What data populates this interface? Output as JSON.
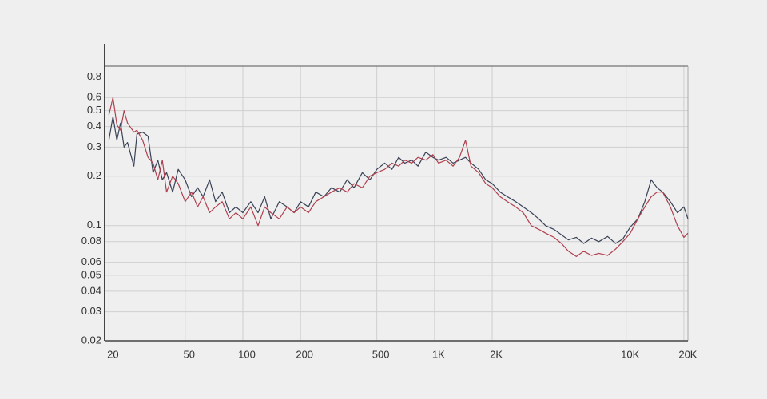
{
  "chart_data": {
    "type": "line",
    "xscale": "log",
    "yscale": "log",
    "grid": true,
    "xlim": [
      19,
      21000
    ],
    "ylim": [
      0.02,
      0.93
    ],
    "xticks": [
      20,
      50,
      100,
      200,
      500,
      {
        "value": 1000,
        "label": "1K"
      },
      {
        "value": 2000,
        "label": "2K"
      },
      {
        "value": 10000,
        "label": "10K"
      },
      {
        "value": 20000,
        "label": "20K"
      }
    ],
    "yticks": [
      0.02,
      0.03,
      0.04,
      0.05,
      0.06,
      0.08,
      0.1,
      0.2,
      0.3,
      0.4,
      0.5,
      0.6,
      0.8
    ],
    "x": [
      20,
      21,
      22,
      23,
      24,
      25,
      27,
      28,
      30,
      32,
      34,
      36,
      38,
      40,
      43,
      46,
      50,
      54,
      58,
      62,
      67,
      72,
      78,
      85,
      92,
      100,
      110,
      120,
      130,
      140,
      155,
      170,
      185,
      200,
      220,
      240,
      265,
      290,
      320,
      350,
      380,
      420,
      460,
      500,
      550,
      600,
      650,
      700,
      760,
      820,
      900,
      980,
      1050,
      1150,
      1250,
      1350,
      1450,
      1550,
      1700,
      1850,
      2000,
      2200,
      2400,
      2650,
      2900,
      3200,
      3500,
      3800,
      4200,
      4600,
      5000,
      5500,
      6000,
      6600,
      7200,
      8000,
      8800,
      9600,
      10500,
      11500,
      12500,
      13500,
      14500,
      15500,
      17000,
      18500,
      20000,
      21000
    ],
    "series": [
      {
        "color": "#3a4257",
        "values": [
          0.33,
          0.46,
          0.33,
          0.42,
          0.3,
          0.32,
          0.23,
          0.36,
          0.37,
          0.35,
          0.21,
          0.25,
          0.19,
          0.21,
          0.16,
          0.22,
          0.19,
          0.15,
          0.17,
          0.15,
          0.19,
          0.14,
          0.16,
          0.12,
          0.13,
          0.12,
          0.14,
          0.12,
          0.15,
          0.11,
          0.14,
          0.13,
          0.12,
          0.14,
          0.13,
          0.16,
          0.15,
          0.17,
          0.16,
          0.19,
          0.17,
          0.21,
          0.19,
          0.22,
          0.24,
          0.22,
          0.26,
          0.24,
          0.25,
          0.23,
          0.28,
          0.26,
          0.25,
          0.26,
          0.24,
          0.25,
          0.26,
          0.24,
          0.22,
          0.19,
          0.18,
          0.16,
          0.15,
          0.14,
          0.13,
          0.12,
          0.11,
          0.1,
          0.095,
          0.088,
          0.082,
          0.085,
          0.078,
          0.084,
          0.08,
          0.086,
          0.078,
          0.083,
          0.098,
          0.11,
          0.14,
          0.19,
          0.17,
          0.16,
          0.14,
          0.12,
          0.13,
          0.11
        ]
      },
      {
        "color": "#b0404f",
        "values": [
          0.47,
          0.6,
          0.41,
          0.38,
          0.5,
          0.42,
          0.37,
          0.38,
          0.33,
          0.26,
          0.24,
          0.19,
          0.25,
          0.16,
          0.2,
          0.18,
          0.14,
          0.16,
          0.13,
          0.15,
          0.12,
          0.13,
          0.14,
          0.11,
          0.12,
          0.11,
          0.13,
          0.1,
          0.13,
          0.12,
          0.11,
          0.13,
          0.12,
          0.13,
          0.12,
          0.14,
          0.15,
          0.16,
          0.17,
          0.16,
          0.18,
          0.17,
          0.2,
          0.21,
          0.22,
          0.24,
          0.23,
          0.25,
          0.24,
          0.26,
          0.25,
          0.27,
          0.24,
          0.25,
          0.23,
          0.26,
          0.33,
          0.23,
          0.21,
          0.18,
          0.17,
          0.15,
          0.14,
          0.13,
          0.12,
          0.1,
          0.095,
          0.09,
          0.085,
          0.078,
          0.07,
          0.065,
          0.07,
          0.066,
          0.068,
          0.066,
          0.072,
          0.08,
          0.09,
          0.11,
          0.13,
          0.15,
          0.16,
          0.16,
          0.13,
          0.1,
          0.085,
          0.09
        ]
      }
    ]
  }
}
